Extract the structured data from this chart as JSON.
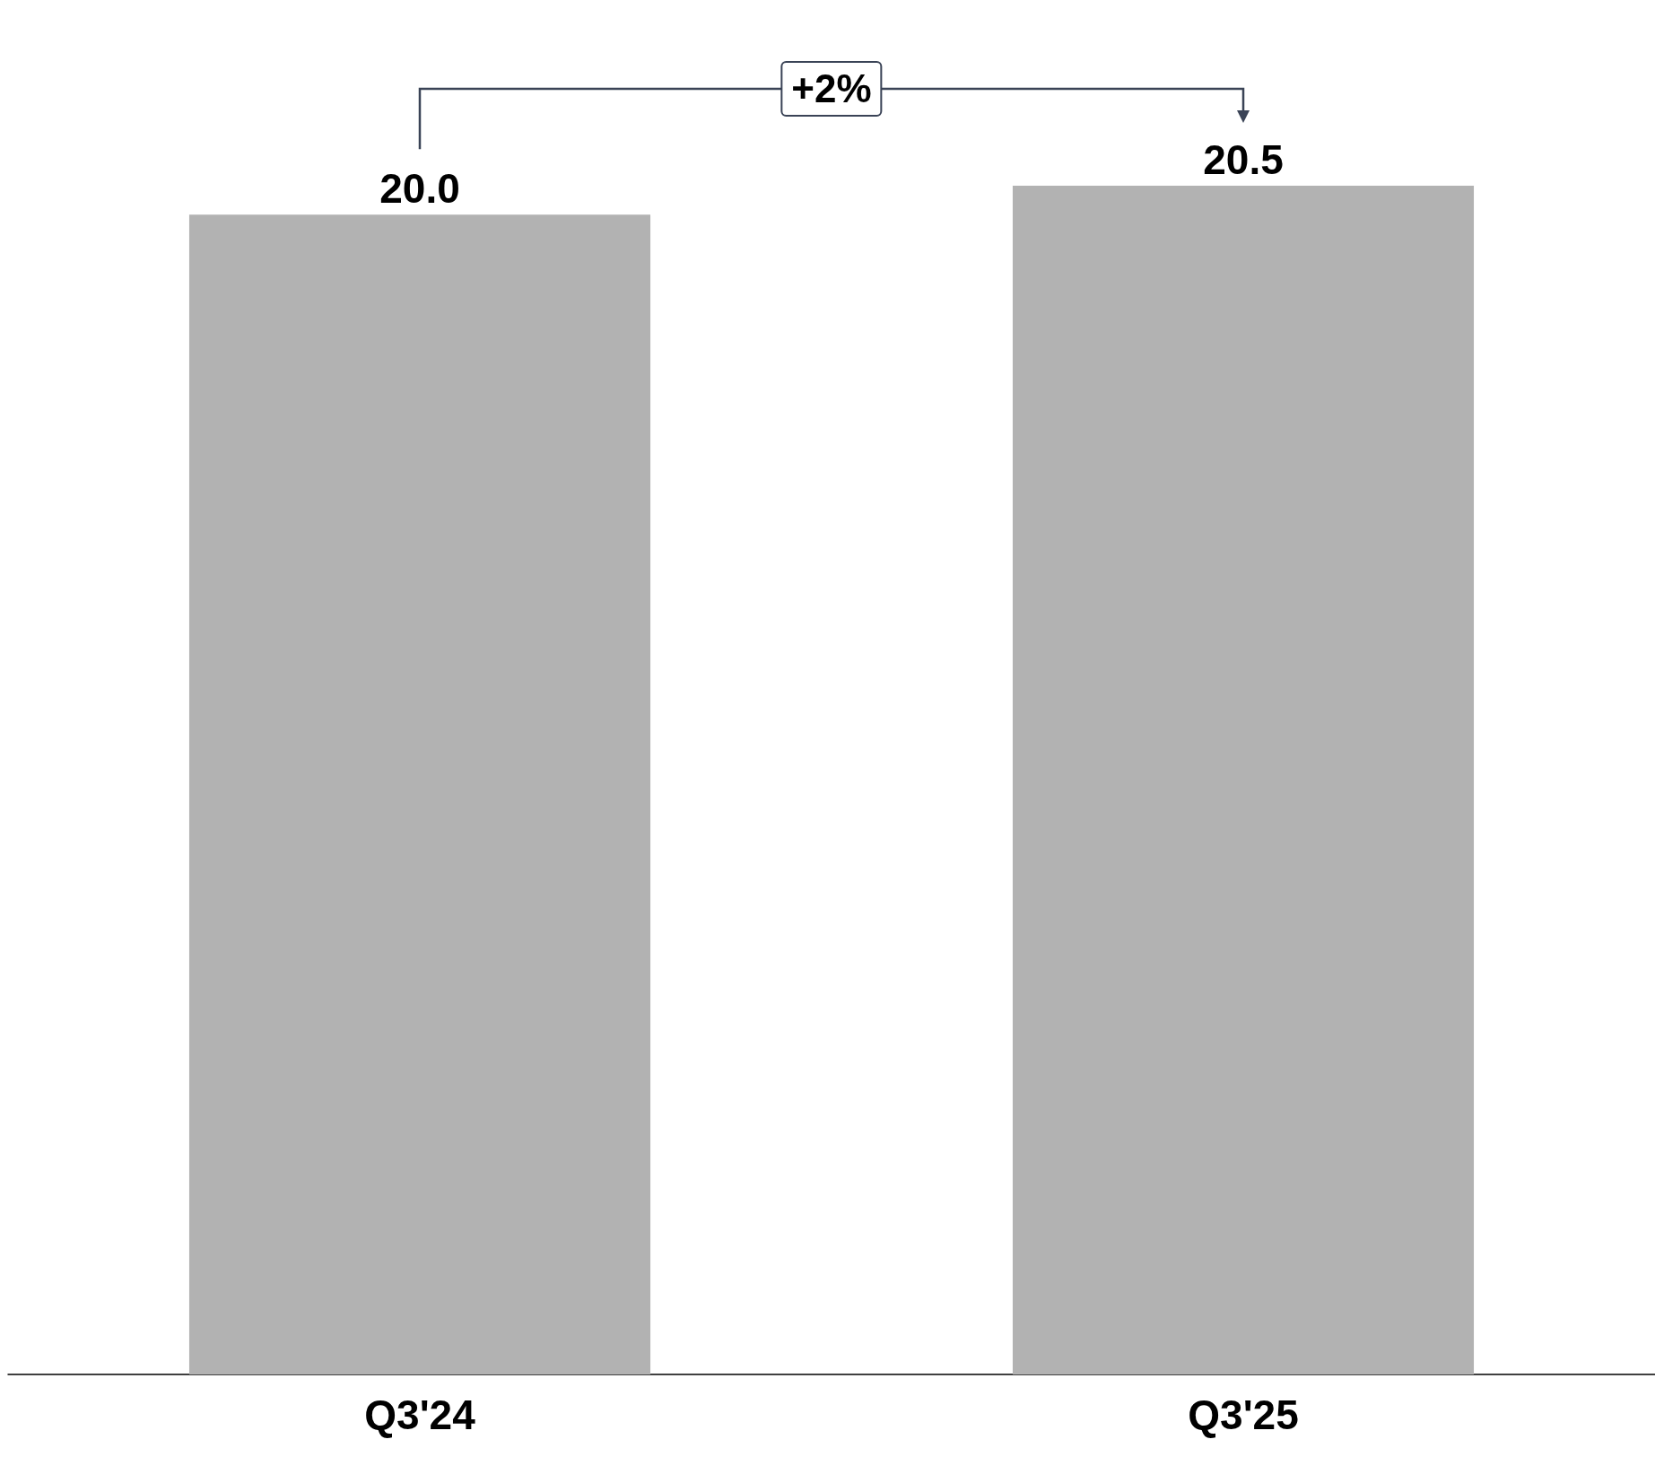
{
  "chart_data": {
    "type": "bar",
    "categories": [
      "Q3'24",
      "Q3'25"
    ],
    "values": [
      20.0,
      20.5
    ],
    "value_labels": [
      "20.0",
      "20.5"
    ],
    "color": "#b2b2b2",
    "annotations": [
      "+2%"
    ]
  }
}
